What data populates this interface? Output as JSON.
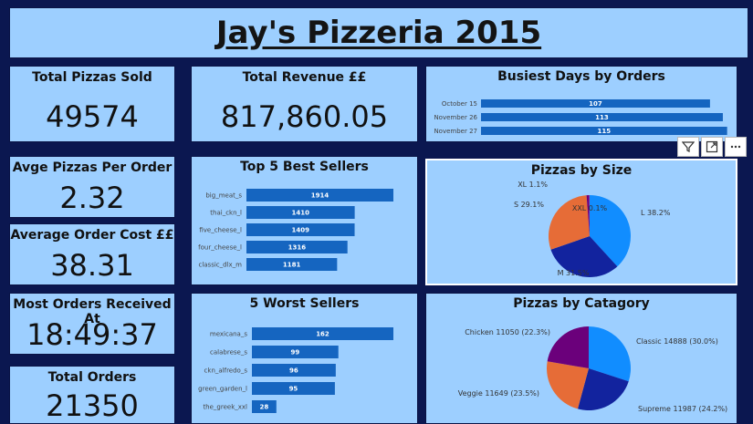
{
  "dashboard_title": "Jay's Pizzeria 2015",
  "kpis": {
    "total_pizzas_sold": {
      "label": "Total Pizzas Sold",
      "value": "49574"
    },
    "total_revenue": {
      "label": "Total Revenue ££",
      "value": "817,860.05"
    },
    "avg_pizzas_per_order": {
      "label": "Avge Pizzas Per Order",
      "value": "2.32"
    },
    "avg_order_cost": {
      "label": "Average Order Cost ££",
      "value": "38.31"
    },
    "most_orders_at": {
      "label": "Most Orders Received At",
      "value": "18:49:37"
    },
    "total_orders": {
      "label": "Total Orders",
      "value": "21350"
    }
  },
  "toolbar": {
    "icons": [
      "filter-icon",
      "focus-mode-icon",
      "more-options-icon"
    ]
  },
  "colors": {
    "card_bg": "#9dcfff",
    "page_bg": "#0b1750",
    "bar": "#1565c0",
    "pie_blue": "#118dff",
    "pie_navy": "#12239e",
    "pie_orange": "#e66c37",
    "pie_purple": "#6b007b"
  },
  "chart_data": [
    {
      "type": "bar",
      "title": "Busiest Days by Orders",
      "categories": [
        "October 15",
        "November 26",
        "November 27"
      ],
      "values": [
        107,
        113,
        115
      ],
      "value_labels": [
        "107",
        "113",
        "115"
      ],
      "xlim": [
        0,
        116
      ]
    },
    {
      "type": "bar",
      "title": "Top 5 Best Sellers",
      "categories": [
        "big_meat_s",
        "thai_ckn_l",
        "five_cheese_l",
        "four_cheese_l",
        "classic_dlx_m"
      ],
      "values": [
        1914,
        1410,
        1409,
        1316,
        1181
      ],
      "value_labels": [
        "1914",
        "1410",
        "1409",
        "1316",
        "1181"
      ],
      "xlim": [
        0,
        1914
      ]
    },
    {
      "type": "bar",
      "title": "5 Worst Sellers",
      "categories": [
        "mexicana_s",
        "calabrese_s",
        "ckn_alfredo_s",
        "green_garden_l",
        "the_greek_xxl"
      ],
      "values": [
        162,
        99,
        96,
        95,
        28
      ],
      "value_labels": [
        "162",
        "99",
        "96",
        "95",
        "28"
      ],
      "xlim": [
        0,
        162
      ]
    },
    {
      "type": "pie",
      "title": "Pizzas by Size",
      "slices": [
        {
          "label": "L 38.2%",
          "value": 38.2,
          "color": "#118dff"
        },
        {
          "label": "M 31.5%",
          "value": 31.5,
          "color": "#12239e"
        },
        {
          "label": "S 29.1%",
          "value": 29.1,
          "color": "#e66c37"
        },
        {
          "label": "XL 1.1%",
          "value": 1.1,
          "color": "#6b007b"
        },
        {
          "label": "XXL 0.1%",
          "value": 0.1,
          "color": "#e044a7"
        }
      ]
    },
    {
      "type": "pie",
      "title": "Pizzas by Catagory",
      "slices": [
        {
          "label": "Classic 14888 (30.0%)",
          "value": 30.0,
          "color": "#118dff"
        },
        {
          "label": "Supreme 11987 (24.2%)",
          "value": 24.2,
          "color": "#12239e"
        },
        {
          "label": "Veggie 11649 (23.5%)",
          "value": 23.5,
          "color": "#e66c37"
        },
        {
          "label": "Chicken 11050 (22.3%)",
          "value": 22.3,
          "color": "#6b007b"
        }
      ]
    }
  ]
}
